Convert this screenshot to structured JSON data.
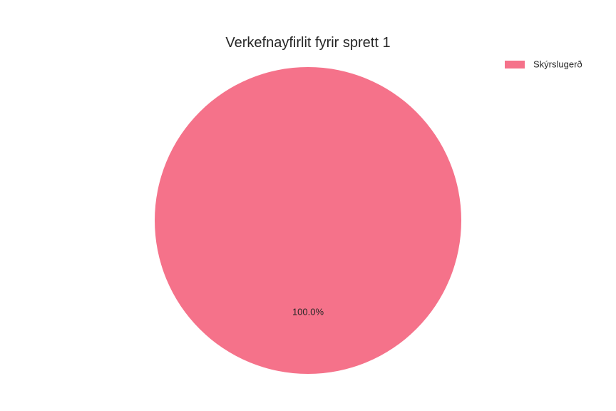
{
  "chart_data": {
    "type": "pie",
    "title": "Verkefnayfirlit fyrir sprett 1",
    "slices": [
      {
        "label": "Skýrslugerð",
        "value": 100.0,
        "display": "100.0%",
        "color": "#f5728a"
      }
    ],
    "legend_position": "top-right",
    "grid": false
  }
}
